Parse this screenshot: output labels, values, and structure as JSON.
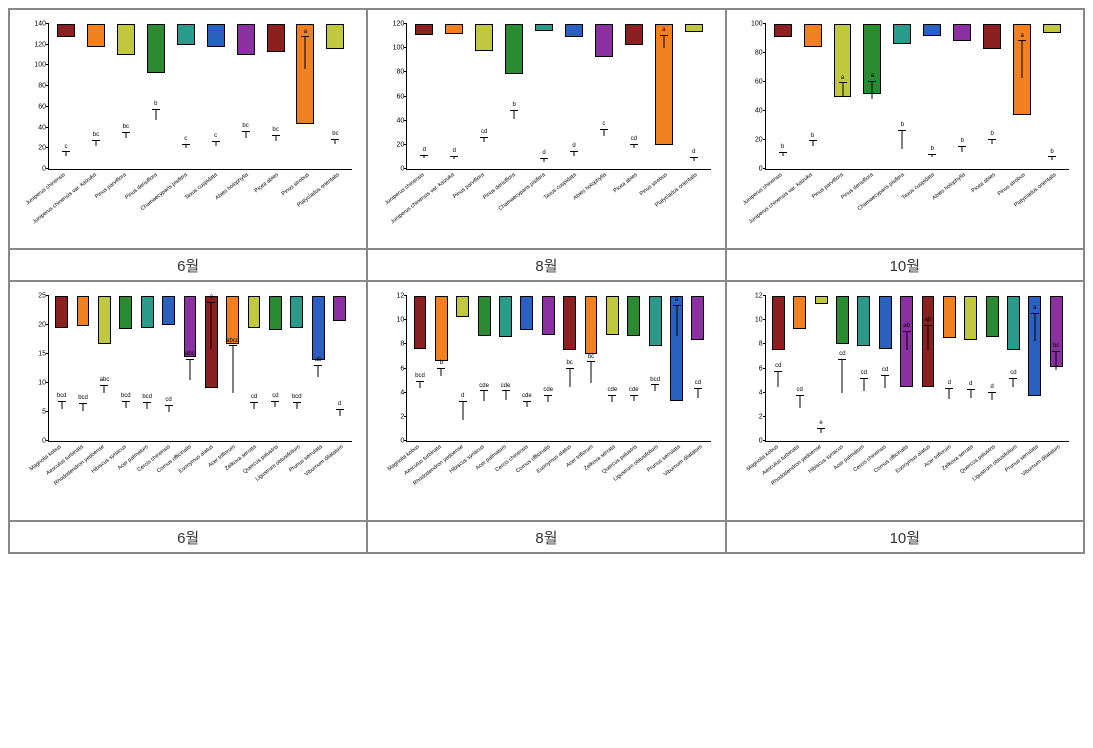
{
  "layout": {
    "rows": 2,
    "cols": 3,
    "labels_row1": [
      "6월",
      "8월",
      "10월"
    ],
    "labels_row2": [
      "6월",
      "8월",
      "10월"
    ]
  },
  "border_color": "#888888",
  "background_color": "#ffffff",
  "row1_categories": [
    "Juniperus chinensis",
    "Juniperus chinensis var. kaizuka",
    "Pinus parviflora",
    "Pinus densiflora",
    "Chamaecyparis pisifera",
    "Taxus cuspidata",
    "Abies holophylla",
    "Picea abies",
    "Pinus strobus",
    "Platycladus orientalis"
  ],
  "row1_colors": [
    "#8b2020",
    "#f08020",
    "#c0c840",
    "#2a8b30",
    "#2a9a8a",
    "#2a60c0",
    "#8a30a0",
    "#8b2020",
    "#f08020",
    "#c0c840"
  ],
  "row2_categories": [
    "Magnolia kobus",
    "Aesculus turbinata",
    "Rhododendron yedoense",
    "Hibiscus syriacus",
    "Acer palmatum",
    "Cercis chinensis",
    "Cornus officinalis",
    "Euonymus alatus",
    "Acer triflorum",
    "Zelkova serrata",
    "Quercus palustris",
    "Ligustrum obtusifolium",
    "Prunus serrulata",
    "Viburnum dilatatum"
  ],
  "row2_colors": [
    "#8b2020",
    "#f08020",
    "#c0c840",
    "#2a8b30",
    "#2a9a8a",
    "#2a60c0",
    "#8a30a0",
    "#8b2020",
    "#f08020",
    "#c0c840",
    "#2a8b30",
    "#2a9a8a",
    "#2a60c0",
    "#8a30a0"
  ],
  "charts": [
    {
      "id": "r1c1",
      "type": "bar",
      "ylim": [
        0,
        140
      ],
      "ytick_step": 20,
      "values": [
        13,
        22,
        30,
        47,
        20,
        22,
        30,
        27,
        97,
        24
      ],
      "errors": [
        3,
        5,
        5,
        10,
        3,
        4,
        6,
        5,
        30,
        4
      ],
      "sig": [
        "c",
        "bc",
        "bc",
        "b",
        "c",
        "c",
        "bc",
        "bc",
        "a",
        "bc"
      ],
      "label_fontsize": 5.5,
      "tick_fontsize": 7,
      "sig_fontsize": 6
    },
    {
      "id": "r1c2",
      "type": "bar",
      "ylim": [
        0,
        120
      ],
      "ytick_step": 20,
      "values": [
        9,
        8,
        22,
        41,
        6,
        11,
        27,
        17,
        100,
        7
      ],
      "errors": [
        2,
        2,
        4,
        7,
        2,
        3,
        5,
        3,
        10,
        2
      ],
      "sig": [
        "d",
        "d",
        "cd",
        "b",
        "d",
        "d",
        "c",
        "cd",
        "a",
        "d"
      ],
      "label_fontsize": 5.5,
      "tick_fontsize": 7,
      "sig_fontsize": 6
    },
    {
      "id": "r1c3",
      "type": "bar",
      "ylim": [
        0,
        100
      ],
      "ytick_step": 20,
      "values": [
        9,
        16,
        50,
        48,
        14,
        8,
        12,
        17,
        63,
        6
      ],
      "errors": [
        2,
        3,
        9,
        12,
        12,
        2,
        3,
        3,
        25,
        2
      ],
      "sig": [
        "b",
        "b",
        "a",
        "a",
        "b",
        "b",
        "b",
        "b",
        "a",
        "b"
      ],
      "label_fontsize": 5.5,
      "tick_fontsize": 7,
      "sig_fontsize": 6
    },
    {
      "id": "r2c1",
      "type": "bar",
      "ylim": [
        0,
        25
      ],
      "ytick_step": 5,
      "values": [
        5.5,
        5.2,
        8.3,
        5.7,
        5.5,
        5.0,
        10.5,
        15.8,
        8.3,
        5.5,
        5.8,
        5.5,
        11.0,
        4.3
      ],
      "errors": [
        1.3,
        1.2,
        1.2,
        1.0,
        1.0,
        1.0,
        3.5,
        8.0,
        8.0,
        1.0,
        1.0,
        1.0,
        2.0,
        1.0
      ],
      "sig": [
        "bcd",
        "bcd",
        "abc",
        "bcd",
        "bcd",
        "cd",
        "abc",
        "a",
        "abcd",
        "cd",
        "cd",
        "bcd",
        "ab",
        "d"
      ],
      "label_fontsize": 5.5,
      "tick_fontsize": 7,
      "sig_fontsize": 6
    },
    {
      "id": "r2c2",
      "type": "bar",
      "ylim": [
        0,
        12
      ],
      "ytick_step": 2,
      "values": [
        4.4,
        5.4,
        1.7,
        3.3,
        3.4,
        2.8,
        3.2,
        4.5,
        4.8,
        3.2,
        3.3,
        4.1,
        8.7,
        3.6
      ],
      "errors": [
        0.5,
        0.6,
        1.5,
        0.8,
        0.7,
        0.4,
        0.5,
        1.5,
        1.7,
        0.5,
        0.4,
        0.5,
        2.5,
        0.7
      ],
      "sig": [
        "bcd",
        "b",
        "d",
        "cde",
        "cde",
        "cde",
        "cde",
        "bc",
        "bc",
        "cde",
        "cde",
        "bcd",
        "a",
        "cd"
      ],
      "label_fontsize": 5.5,
      "tick_fontsize": 7,
      "sig_fontsize": 6
    },
    {
      "id": "r2c3",
      "type": "bar",
      "ylim": [
        0,
        12
      ],
      "ytick_step": 2,
      "values": [
        4.5,
        2.7,
        0.7,
        4.0,
        4.1,
        4.4,
        7.5,
        7.5,
        3.5,
        3.6,
        3.4,
        4.5,
        8.3,
        5.9
      ],
      "errors": [
        1.2,
        1.0,
        0.3,
        2.7,
        1.0,
        1.0,
        1.5,
        2.0,
        0.8,
        0.6,
        0.6,
        0.6,
        2.2,
        1.5
      ],
      "sig": [
        "cd",
        "cd",
        "e",
        "cd",
        "cd",
        "cd",
        "ab",
        "ab",
        "d",
        "d",
        "d",
        "cd",
        "a",
        "bc"
      ],
      "label_fontsize": 5.5,
      "tick_fontsize": 7,
      "sig_fontsize": 6
    }
  ]
}
